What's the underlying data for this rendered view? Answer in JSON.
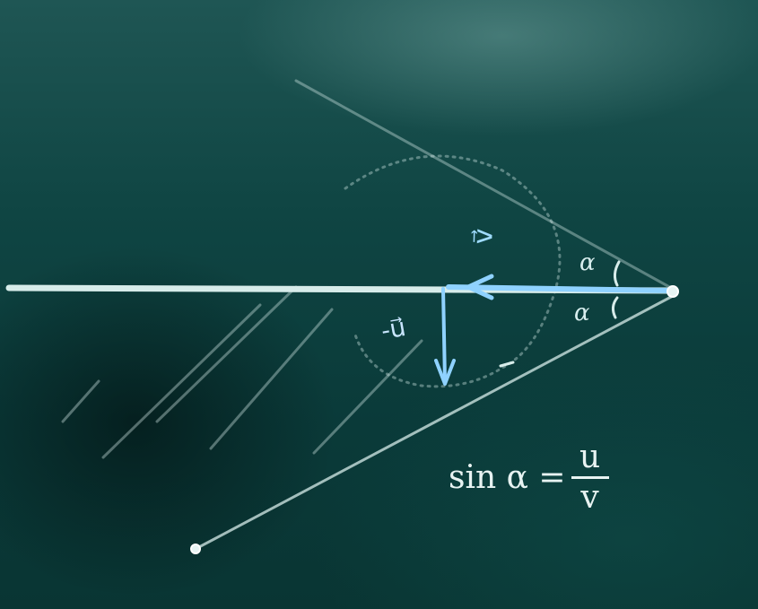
{
  "labels": {
    "velocity_vector": "v⃗",
    "minus_u_vector": "-u⃗",
    "angle_top": "α",
    "angle_bottom": "α"
  },
  "formula": {
    "lhs": "sin α =",
    "numerator": "u",
    "denominator": "v"
  },
  "colors": {
    "board": "#0b3b3a",
    "chalk": "#d7ecea",
    "blue_chalk": "#8fd2ff"
  }
}
